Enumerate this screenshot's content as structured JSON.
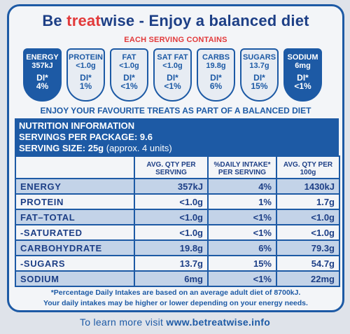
{
  "tagline": {
    "be": "Be ",
    "treat": "treat",
    "rest": "wise - Enjoy a balanced diet"
  },
  "each_serving": "EACH SERVING CONTAINS",
  "badges": [
    {
      "name": "ENERGY",
      "amount": "357kJ",
      "di": "DI*",
      "pct": "4%",
      "style": "dark"
    },
    {
      "name": "PROTEIN",
      "amount": "<1.0g",
      "di": "DI*",
      "pct": "1%",
      "style": "light"
    },
    {
      "name": "FAT",
      "amount": "<1.0g",
      "di": "DI*",
      "pct": "<1%",
      "style": "light"
    },
    {
      "name": "SAT FAT",
      "amount": "<1.0g",
      "di": "DI*",
      "pct": "<1%",
      "style": "light"
    },
    {
      "name": "CARBS",
      "amount": "19.8g",
      "di": "DI*",
      "pct": "6%",
      "style": "light"
    },
    {
      "name": "SUGARS",
      "amount": "13.7g",
      "di": "DI*",
      "pct": "15%",
      "style": "light"
    },
    {
      "name": "SODIUM",
      "amount": "6mg",
      "di": "DI*",
      "pct": "<1%",
      "style": "dark"
    }
  ],
  "enjoy": "ENJOY YOUR FAVOURITE TREATS AS PART OF A BALANCED DIET",
  "info": {
    "title": "NUTRITION INFORMATION",
    "servings": "SERVINGS PER PACKAGE: 9.6",
    "size": "SERVING SIZE: 25g",
    "size_note": " (approx. 4 units)"
  },
  "table": {
    "headers": [
      "",
      "AVG. QTY PER SERVING",
      "%DAILY INTAKE* PER SERVING",
      "AVG. QTY PER 100g"
    ],
    "rows": [
      [
        "ENERGY",
        "357kJ",
        "4%",
        "1430kJ"
      ],
      [
        "PROTEIN",
        "<1.0g",
        "1%",
        "1.7g"
      ],
      [
        "FAT–TOTAL",
        "<1.0g",
        "<1%",
        "<1.0g"
      ],
      [
        "-SATURATED",
        "<1.0g",
        "<1%",
        "<1.0g"
      ],
      [
        "CARBOHYDRATE",
        "19.8g",
        "6%",
        "79.3g"
      ],
      [
        "-SUGARS",
        "13.7g",
        "15%",
        "54.7g"
      ],
      [
        "SODIUM",
        "6mg",
        "<1%",
        "22mg"
      ]
    ]
  },
  "footnote": [
    "*Percentage Daily Intakes are based on an average adult diet of 8700kJ.",
    "Your daily intakes may be higher or lower depending on your energy needs."
  ],
  "learn": {
    "prefix": "To learn more visit ",
    "url": "www.betreatwise.info"
  },
  "colors": {
    "blue": "#1d5aa5",
    "red": "#e23a3b",
    "row_shade": "#c3d3e8"
  }
}
